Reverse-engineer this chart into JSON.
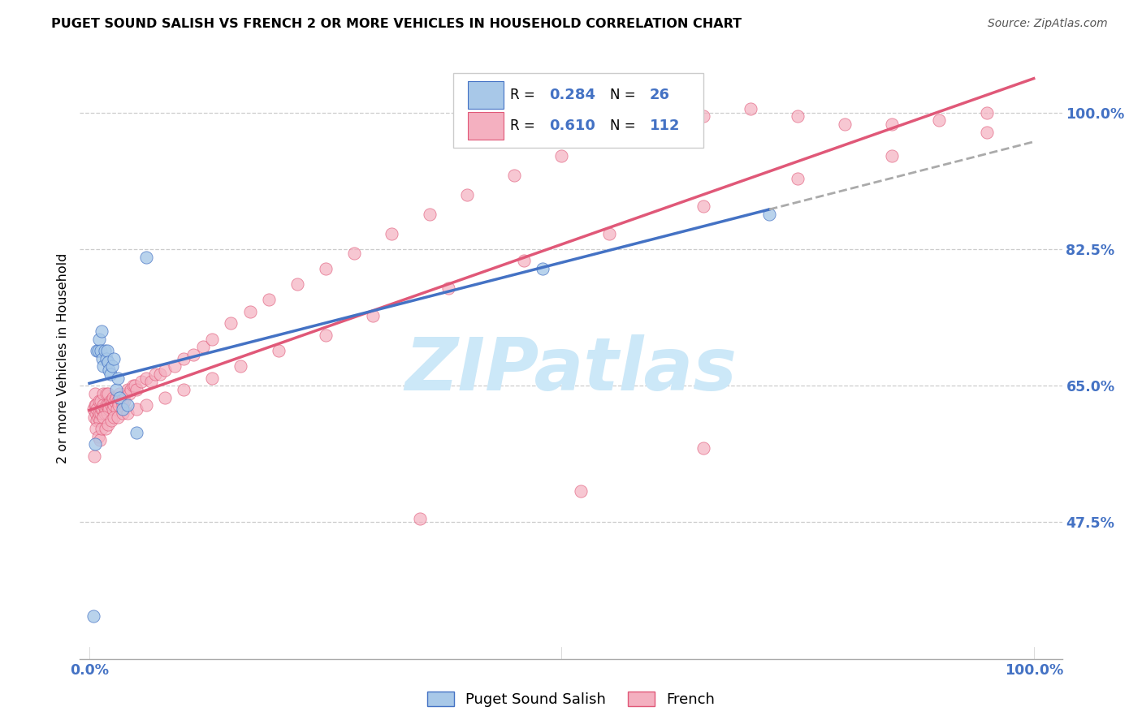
{
  "title": "PUGET SOUND SALISH VS FRENCH 2 OR MORE VEHICLES IN HOUSEHOLD CORRELATION CHART",
  "source": "Source: ZipAtlas.com",
  "ylabel": "2 or more Vehicles in Household",
  "color_salish": "#a8c8e8",
  "color_french": "#f4b0c0",
  "line_color_salish": "#4472c4",
  "line_color_french": "#e05878",
  "r_salish": 0.284,
  "n_salish": 26,
  "r_french": 0.61,
  "n_french": 112,
  "ytick_vals": [
    0.475,
    0.65,
    0.825,
    1.0
  ],
  "ytick_labels": [
    "47.5%",
    "65.0%",
    "82.5%",
    "100.0%"
  ],
  "watermark": "ZIPatlas",
  "salish_x": [
    0.004,
    0.006,
    0.008,
    0.009,
    0.01,
    0.012,
    0.013,
    0.014,
    0.015,
    0.016,
    0.018,
    0.019,
    0.02,
    0.021,
    0.022,
    0.024,
    0.026,
    0.028,
    0.03,
    0.032,
    0.035,
    0.04,
    0.05,
    0.06,
    0.48,
    0.72
  ],
  "salish_y": [
    0.355,
    0.575,
    0.695,
    0.695,
    0.71,
    0.695,
    0.72,
    0.685,
    0.675,
    0.695,
    0.685,
    0.695,
    0.68,
    0.67,
    0.665,
    0.675,
    0.685,
    0.645,
    0.66,
    0.635,
    0.62,
    0.625,
    0.59,
    0.815,
    0.8,
    0.87
  ],
  "french_x": [
    0.004,
    0.005,
    0.006,
    0.006,
    0.007,
    0.007,
    0.008,
    0.008,
    0.009,
    0.01,
    0.01,
    0.011,
    0.012,
    0.012,
    0.013,
    0.014,
    0.015,
    0.015,
    0.016,
    0.017,
    0.018,
    0.018,
    0.019,
    0.02,
    0.02,
    0.021,
    0.022,
    0.023,
    0.024,
    0.025,
    0.025,
    0.026,
    0.027,
    0.028,
    0.029,
    0.03,
    0.031,
    0.032,
    0.033,
    0.034,
    0.035,
    0.036,
    0.037,
    0.038,
    0.04,
    0.042,
    0.044,
    0.046,
    0.048,
    0.05,
    0.055,
    0.06,
    0.065,
    0.07,
    0.075,
    0.08,
    0.09,
    0.1,
    0.11,
    0.12,
    0.13,
    0.15,
    0.17,
    0.19,
    0.22,
    0.25,
    0.28,
    0.32,
    0.36,
    0.4,
    0.45,
    0.5,
    0.55,
    0.6,
    0.65,
    0.7,
    0.75,
    0.8,
    0.85,
    0.9,
    0.95,
    0.005,
    0.007,
    0.009,
    0.011,
    0.013,
    0.015,
    0.017,
    0.02,
    0.023,
    0.026,
    0.03,
    0.035,
    0.04,
    0.05,
    0.06,
    0.08,
    0.1,
    0.13,
    0.16,
    0.2,
    0.25,
    0.3,
    0.38,
    0.46,
    0.55,
    0.65,
    0.75,
    0.85,
    0.95,
    0.35,
    0.65,
    0.52
  ],
  "french_y": [
    0.62,
    0.61,
    0.625,
    0.64,
    0.625,
    0.615,
    0.605,
    0.62,
    0.61,
    0.615,
    0.63,
    0.605,
    0.615,
    0.63,
    0.62,
    0.62,
    0.625,
    0.64,
    0.615,
    0.62,
    0.625,
    0.64,
    0.615,
    0.625,
    0.64,
    0.62,
    0.63,
    0.625,
    0.63,
    0.62,
    0.635,
    0.625,
    0.63,
    0.635,
    0.62,
    0.63,
    0.625,
    0.64,
    0.635,
    0.63,
    0.625,
    0.635,
    0.63,
    0.64,
    0.645,
    0.64,
    0.645,
    0.65,
    0.65,
    0.645,
    0.655,
    0.66,
    0.655,
    0.665,
    0.665,
    0.67,
    0.675,
    0.685,
    0.69,
    0.7,
    0.71,
    0.73,
    0.745,
    0.76,
    0.78,
    0.8,
    0.82,
    0.845,
    0.87,
    0.895,
    0.92,
    0.945,
    0.965,
    0.98,
    0.995,
    1.005,
    0.995,
    0.985,
    0.985,
    0.99,
    1.0,
    0.56,
    0.595,
    0.585,
    0.58,
    0.595,
    0.61,
    0.595,
    0.6,
    0.605,
    0.61,
    0.61,
    0.615,
    0.615,
    0.62,
    0.625,
    0.635,
    0.645,
    0.66,
    0.675,
    0.695,
    0.715,
    0.74,
    0.775,
    0.81,
    0.845,
    0.88,
    0.915,
    0.945,
    0.975,
    0.48,
    0.57,
    0.515
  ]
}
